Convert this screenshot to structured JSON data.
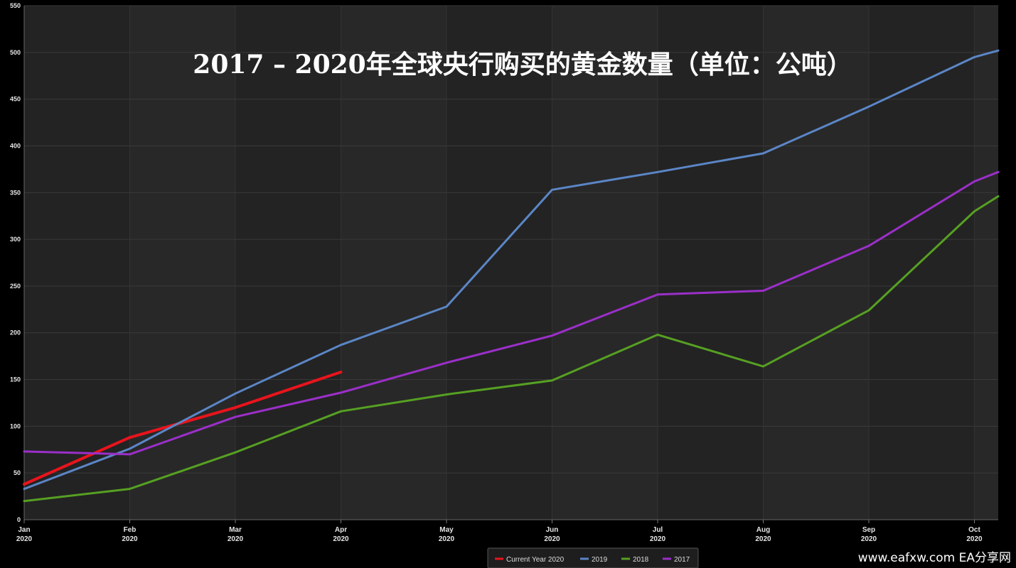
{
  "chart_data": {
    "type": "line",
    "title": "2017 – 2020年全球央行购买的黄金数量（单位：公吨）",
    "xlabel": "",
    "ylabel": "",
    "categories": [
      "Jan\n2020",
      "Feb\n2020",
      "Mar\n2020",
      "Apr\n2020",
      "May\n2020",
      "Jun\n2020",
      "Jul\n2020",
      "Aug\n2020",
      "Sep\n2020",
      "Oct\n2020"
    ],
    "ylim": [
      0,
      550
    ],
    "yticks": [
      "0",
      "50",
      "100",
      "150",
      "200",
      "250",
      "300",
      "350",
      "400",
      "450",
      "500",
      "550"
    ],
    "grid": true,
    "legend_position": "bottom",
    "series": [
      {
        "name": "Current Year 2020",
        "color": "#e8141c",
        "values": [
          38,
          88,
          120,
          158,
          null,
          null,
          null,
          null,
          null,
          null
        ]
      },
      {
        "name": "2019",
        "color": "#5b86c7",
        "values": [
          33,
          76,
          135,
          187,
          228,
          353,
          372,
          392,
          442,
          495
        ]
      },
      {
        "name": "2018",
        "color": "#56a022",
        "values": [
          20,
          33,
          72,
          116,
          134,
          149,
          198,
          164,
          224,
          330
        ]
      },
      {
        "name": "2017",
        "color": "#9b2fc9",
        "values": [
          73,
          70,
          110,
          136,
          168,
          197,
          241,
          245,
          293,
          362
        ]
      }
    ],
    "extension": {
      "note_values_past_last_category": true,
      "series_end": {
        "2019": 502,
        "2018": 346,
        "2017": 372
      }
    }
  },
  "watermark": "www.eafxw.com   EA分享网"
}
